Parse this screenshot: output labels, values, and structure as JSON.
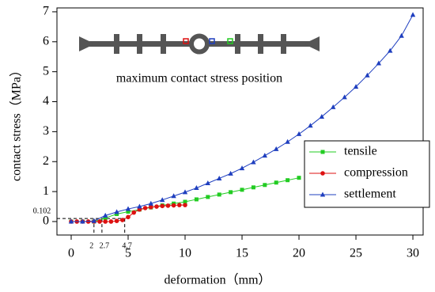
{
  "chart_data": {
    "type": "line",
    "x_label": "deformation（mm）",
    "y_label": "contact stress（MPa）",
    "inset_label": "maximum contact stress position",
    "xlim": [
      -1.25,
      30.9
    ],
    "ylim": [
      -0.45,
      7.13
    ],
    "xticks": [
      0,
      5,
      10,
      15,
      20,
      25,
      30
    ],
    "yticks": [
      0,
      1,
      2,
      3,
      4,
      5,
      6,
      7
    ],
    "annotation_x": [
      2,
      2.7,
      4.7
    ],
    "annotation_y": 0.102,
    "legend": "lower right",
    "series": [
      {
        "name": "tensile",
        "color": "#22cc22",
        "marker": "square",
        "x": [
          0,
          1,
          2,
          3,
          4,
          5,
          6,
          7,
          8,
          9,
          10,
          11,
          12,
          13,
          14,
          15,
          16,
          17,
          18,
          19,
          20
        ],
        "values": [
          0,
          0,
          0,
          0.12,
          0.25,
          0.33,
          0.4,
          0.47,
          0.54,
          0.6,
          0.66,
          0.74,
          0.82,
          0.9,
          0.98,
          1.06,
          1.14,
          1.22,
          1.3,
          1.38,
          1.46
        ]
      },
      {
        "name": "compression",
        "color": "#dd1111",
        "marker": "circle",
        "x": [
          0,
          0.5,
          1,
          1.5,
          2,
          2.5,
          3,
          3.5,
          4,
          4.5,
          5,
          5.5,
          6,
          6.5,
          7,
          7.5,
          8,
          8.5,
          9,
          9.5,
          10
        ],
        "values": [
          0,
          0,
          0,
          0,
          0,
          0,
          0,
          0,
          0.02,
          0.05,
          0.15,
          0.3,
          0.4,
          0.45,
          0.48,
          0.5,
          0.52,
          0.53,
          0.54,
          0.55,
          0.55
        ]
      },
      {
        "name": "settlement",
        "color": "#1f3fbf",
        "marker": "triangle",
        "x": [
          0,
          1,
          2,
          3,
          4,
          5,
          6,
          7,
          8,
          9,
          10,
          11,
          12,
          13,
          14,
          15,
          16,
          17,
          18,
          19,
          20,
          21,
          22,
          23,
          24,
          25,
          26,
          27,
          28,
          29,
          30
        ],
        "values": [
          0,
          0,
          0.02,
          0.2,
          0.32,
          0.42,
          0.5,
          0.6,
          0.72,
          0.85,
          0.98,
          1.12,
          1.28,
          1.44,
          1.6,
          1.78,
          1.98,
          2.2,
          2.42,
          2.66,
          2.92,
          3.2,
          3.5,
          3.82,
          4.15,
          4.5,
          4.88,
          5.28,
          5.7,
          6.2,
          6.9
        ]
      }
    ]
  }
}
